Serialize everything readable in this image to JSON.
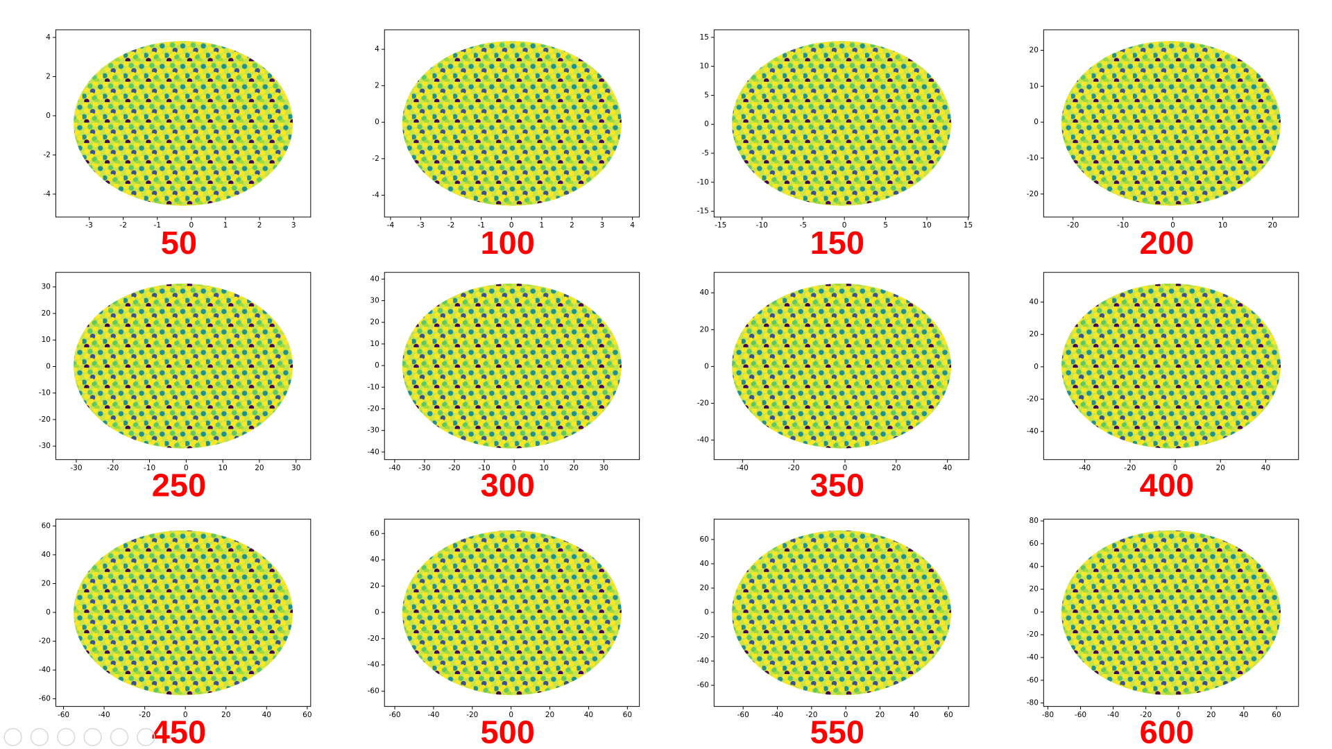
{
  "chart_data": [
    {
      "type": "scatter",
      "title": "50",
      "xlim": [
        -3.98,
        3.5
      ],
      "ylim": [
        -5.17,
        4.39
      ],
      "xticks": [
        -3,
        -2,
        -1,
        0,
        1,
        2,
        3
      ],
      "yticks": [
        -4,
        -2,
        0,
        2,
        4
      ]
    },
    {
      "type": "scatter",
      "title": "100",
      "xlim": [
        -4.2,
        4.23
      ],
      "ylim": [
        -5.2,
        5.07
      ],
      "xticks": [
        -4,
        -3,
        -2,
        -1,
        0,
        1,
        2,
        3,
        4
      ],
      "yticks": [
        -4,
        -2,
        0,
        2,
        4
      ]
    },
    {
      "type": "scatter",
      "title": "150",
      "xlim": [
        -15.8,
        15.1
      ],
      "ylim": [
        -16.0,
        16.3
      ],
      "xticks": [
        -15,
        -10,
        -5,
        0,
        5,
        10,
        15
      ],
      "yticks": [
        -15,
        -10,
        -5,
        0,
        5,
        10,
        15
      ]
    },
    {
      "type": "scatter",
      "title": "200",
      "xlim": [
        -25.9,
        25.2
      ],
      "ylim": [
        -26.4,
        25.7
      ],
      "xticks": [
        -20,
        -10,
        0,
        10,
        20
      ],
      "yticks": [
        -20,
        -10,
        0,
        10,
        20
      ]
    },
    {
      "type": "scatter",
      "title": "250",
      "xlim": [
        -35.6,
        34.0
      ],
      "ylim": [
        -35.1,
        35.5
      ],
      "xticks": [
        -30,
        -20,
        -10,
        0,
        10,
        20,
        30
      ],
      "yticks": [
        -30,
        -20,
        -10,
        0,
        10,
        20,
        30
      ]
    },
    {
      "type": "scatter",
      "title": "300",
      "xlim": [
        -43.4,
        41.9
      ],
      "ylim": [
        -43.5,
        43.1
      ],
      "xticks": [
        -40,
        -30,
        -20,
        -10,
        0,
        10,
        20,
        30
      ],
      "yticks": [
        -40,
        -30,
        -20,
        -10,
        0,
        10,
        20,
        30,
        40
      ]
    },
    {
      "type": "scatter",
      "title": "350",
      "xlim": [
        -51.1,
        48.4
      ],
      "ylim": [
        -50.6,
        51.1
      ],
      "xticks": [
        -40,
        -20,
        0,
        20,
        40
      ],
      "yticks": [
        -40,
        -20,
        0,
        20,
        40
      ]
    },
    {
      "type": "scatter",
      "title": "400",
      "xlim": [
        -58.2,
        54.5
      ],
      "ylim": [
        -57.4,
        58.4
      ],
      "xticks": [
        -40,
        -20,
        0,
        20,
        40
      ],
      "yticks": [
        -40,
        -20,
        0,
        20,
        40
      ]
    },
    {
      "type": "scatter",
      "title": "450",
      "xlim": [
        -63.8,
        61.7
      ],
      "ylim": [
        -65.3,
        64.7
      ],
      "xticks": [
        -60,
        -40,
        -20,
        0,
        20,
        40,
        60
      ],
      "yticks": [
        -60,
        -40,
        -20,
        0,
        20,
        40,
        60
      ]
    },
    {
      "type": "scatter",
      "title": "500",
      "xlim": [
        -65.3,
        66.2
      ],
      "ylim": [
        -71.6,
        70.9
      ],
      "xticks": [
        -60,
        -40,
        -20,
        0,
        20,
        40,
        60
      ],
      "yticks": [
        -60,
        -40,
        -20,
        0,
        20,
        40,
        60
      ]
    },
    {
      "type": "scatter",
      "title": "550",
      "xlim": [
        -77,
        72
      ],
      "ylim": [
        -77.4,
        76.7
      ],
      "xticks": [
        -60,
        -40,
        -20,
        0,
        20,
        40,
        60
      ],
      "yticks": [
        -60,
        -40,
        -20,
        0,
        20,
        40,
        60
      ]
    },
    {
      "type": "scatter",
      "title": "600",
      "xlim": [
        -82.6,
        73.5
      ],
      "ylim": [
        -83,
        81.5
      ],
      "xticks": [
        -80,
        -60,
        -40,
        -20,
        0,
        20,
        40,
        60
      ],
      "yticks": [
        -80,
        -60,
        -40,
        -20,
        0,
        20,
        40,
        60,
        80
      ]
    }
  ]
}
